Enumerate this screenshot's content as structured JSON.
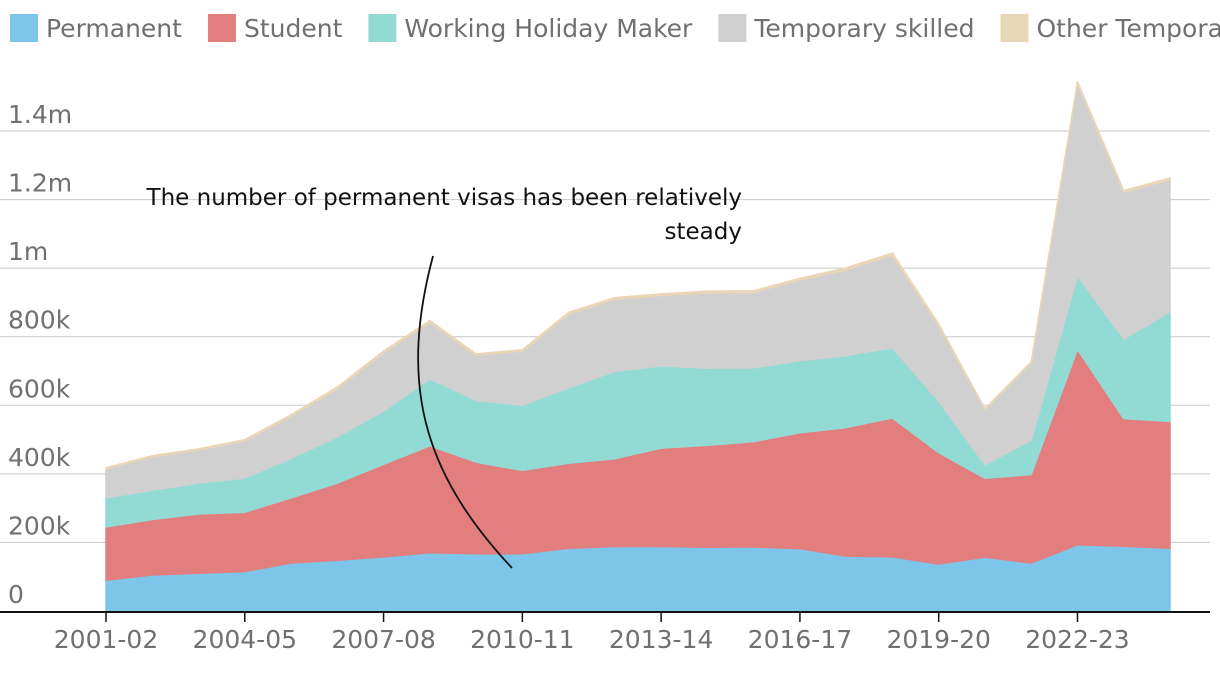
{
  "chart_data": {
    "type": "area",
    "stacked": true,
    "title": "",
    "xlabel": "",
    "ylabel": "",
    "ylim": [
      0,
      1600000
    ],
    "grid": true,
    "legend_position": "top",
    "x": [
      "2001-02",
      "2002-03",
      "2003-04",
      "2004-05",
      "2005-06",
      "2006-07",
      "2007-08",
      "2008-09",
      "2009-10",
      "2010-11",
      "2011-12",
      "2012-13",
      "2013-14",
      "2014-15",
      "2015-16",
      "2016-17",
      "2017-18",
      "2018-19",
      "2019-20",
      "2020-21",
      "2021-22",
      "2022-23",
      "2023-24",
      "2024-25"
    ],
    "x_tick_labels": [
      "2001-02",
      "2004-05",
      "2007-08",
      "2010-11",
      "2013-14",
      "2016-17",
      "2019-20",
      "2022-23"
    ],
    "y_ticks": [
      0,
      200000,
      400000,
      600000,
      800000,
      1000000,
      1200000,
      1400000
    ],
    "y_tick_labels": [
      "0",
      "200k",
      "400k",
      "600k",
      "800k",
      "1m",
      "1.2m",
      "1.4m"
    ],
    "series": [
      {
        "name": "Permanent",
        "color": "#7ec5ea",
        "values": [
          90000,
          105000,
          110000,
          115000,
          140000,
          148000,
          158000,
          170000,
          167000,
          167000,
          183000,
          188000,
          188000,
          186000,
          187000,
          182000,
          160000,
          158000,
          137000,
          157000,
          140000,
          193000,
          189000,
          183000
        ]
      },
      {
        "name": "Student",
        "color": "#e37e7e",
        "values": [
          155000,
          162000,
          173000,
          173000,
          190000,
          225000,
          270000,
          312000,
          267000,
          243000,
          248000,
          256000,
          287000,
          297000,
          307000,
          338000,
          375000,
          405000,
          325000,
          230000,
          258000,
          570000,
          372000,
          370000
        ]
      },
      {
        "name": "Working Holiday Maker",
        "color": "#92dbd5",
        "values": [
          85000,
          85000,
          90000,
          100000,
          115000,
          135000,
          155000,
          195000,
          180000,
          190000,
          220000,
          255000,
          240000,
          225000,
          215000,
          210000,
          210000,
          205000,
          150000,
          40000,
          100000,
          215000,
          232000,
          320000
        ]
      },
      {
        "name": "Temporary skilled",
        "color": "#d0d0d0",
        "values": [
          85000,
          98000,
          97000,
          108000,
          123000,
          140000,
          170000,
          165000,
          132000,
          158000,
          215000,
          210000,
          205000,
          220000,
          220000,
          235000,
          250000,
          270000,
          220000,
          160000,
          225000,
          560000,
          428000,
          385000
        ]
      },
      {
        "name": "Other Temporary",
        "color": "#e8d6b7",
        "values": [
          3000,
          3000,
          3000,
          4000,
          4000,
          5000,
          5000,
          5000,
          4000,
          4000,
          5000,
          5000,
          5000,
          5000,
          5000,
          5000,
          6000,
          6000,
          5000,
          3000,
          4000,
          6000,
          5000,
          5000
        ]
      }
    ],
    "annotation": {
      "lines": [
        "The number of permanent visas has been relatively",
        "steady"
      ]
    }
  }
}
